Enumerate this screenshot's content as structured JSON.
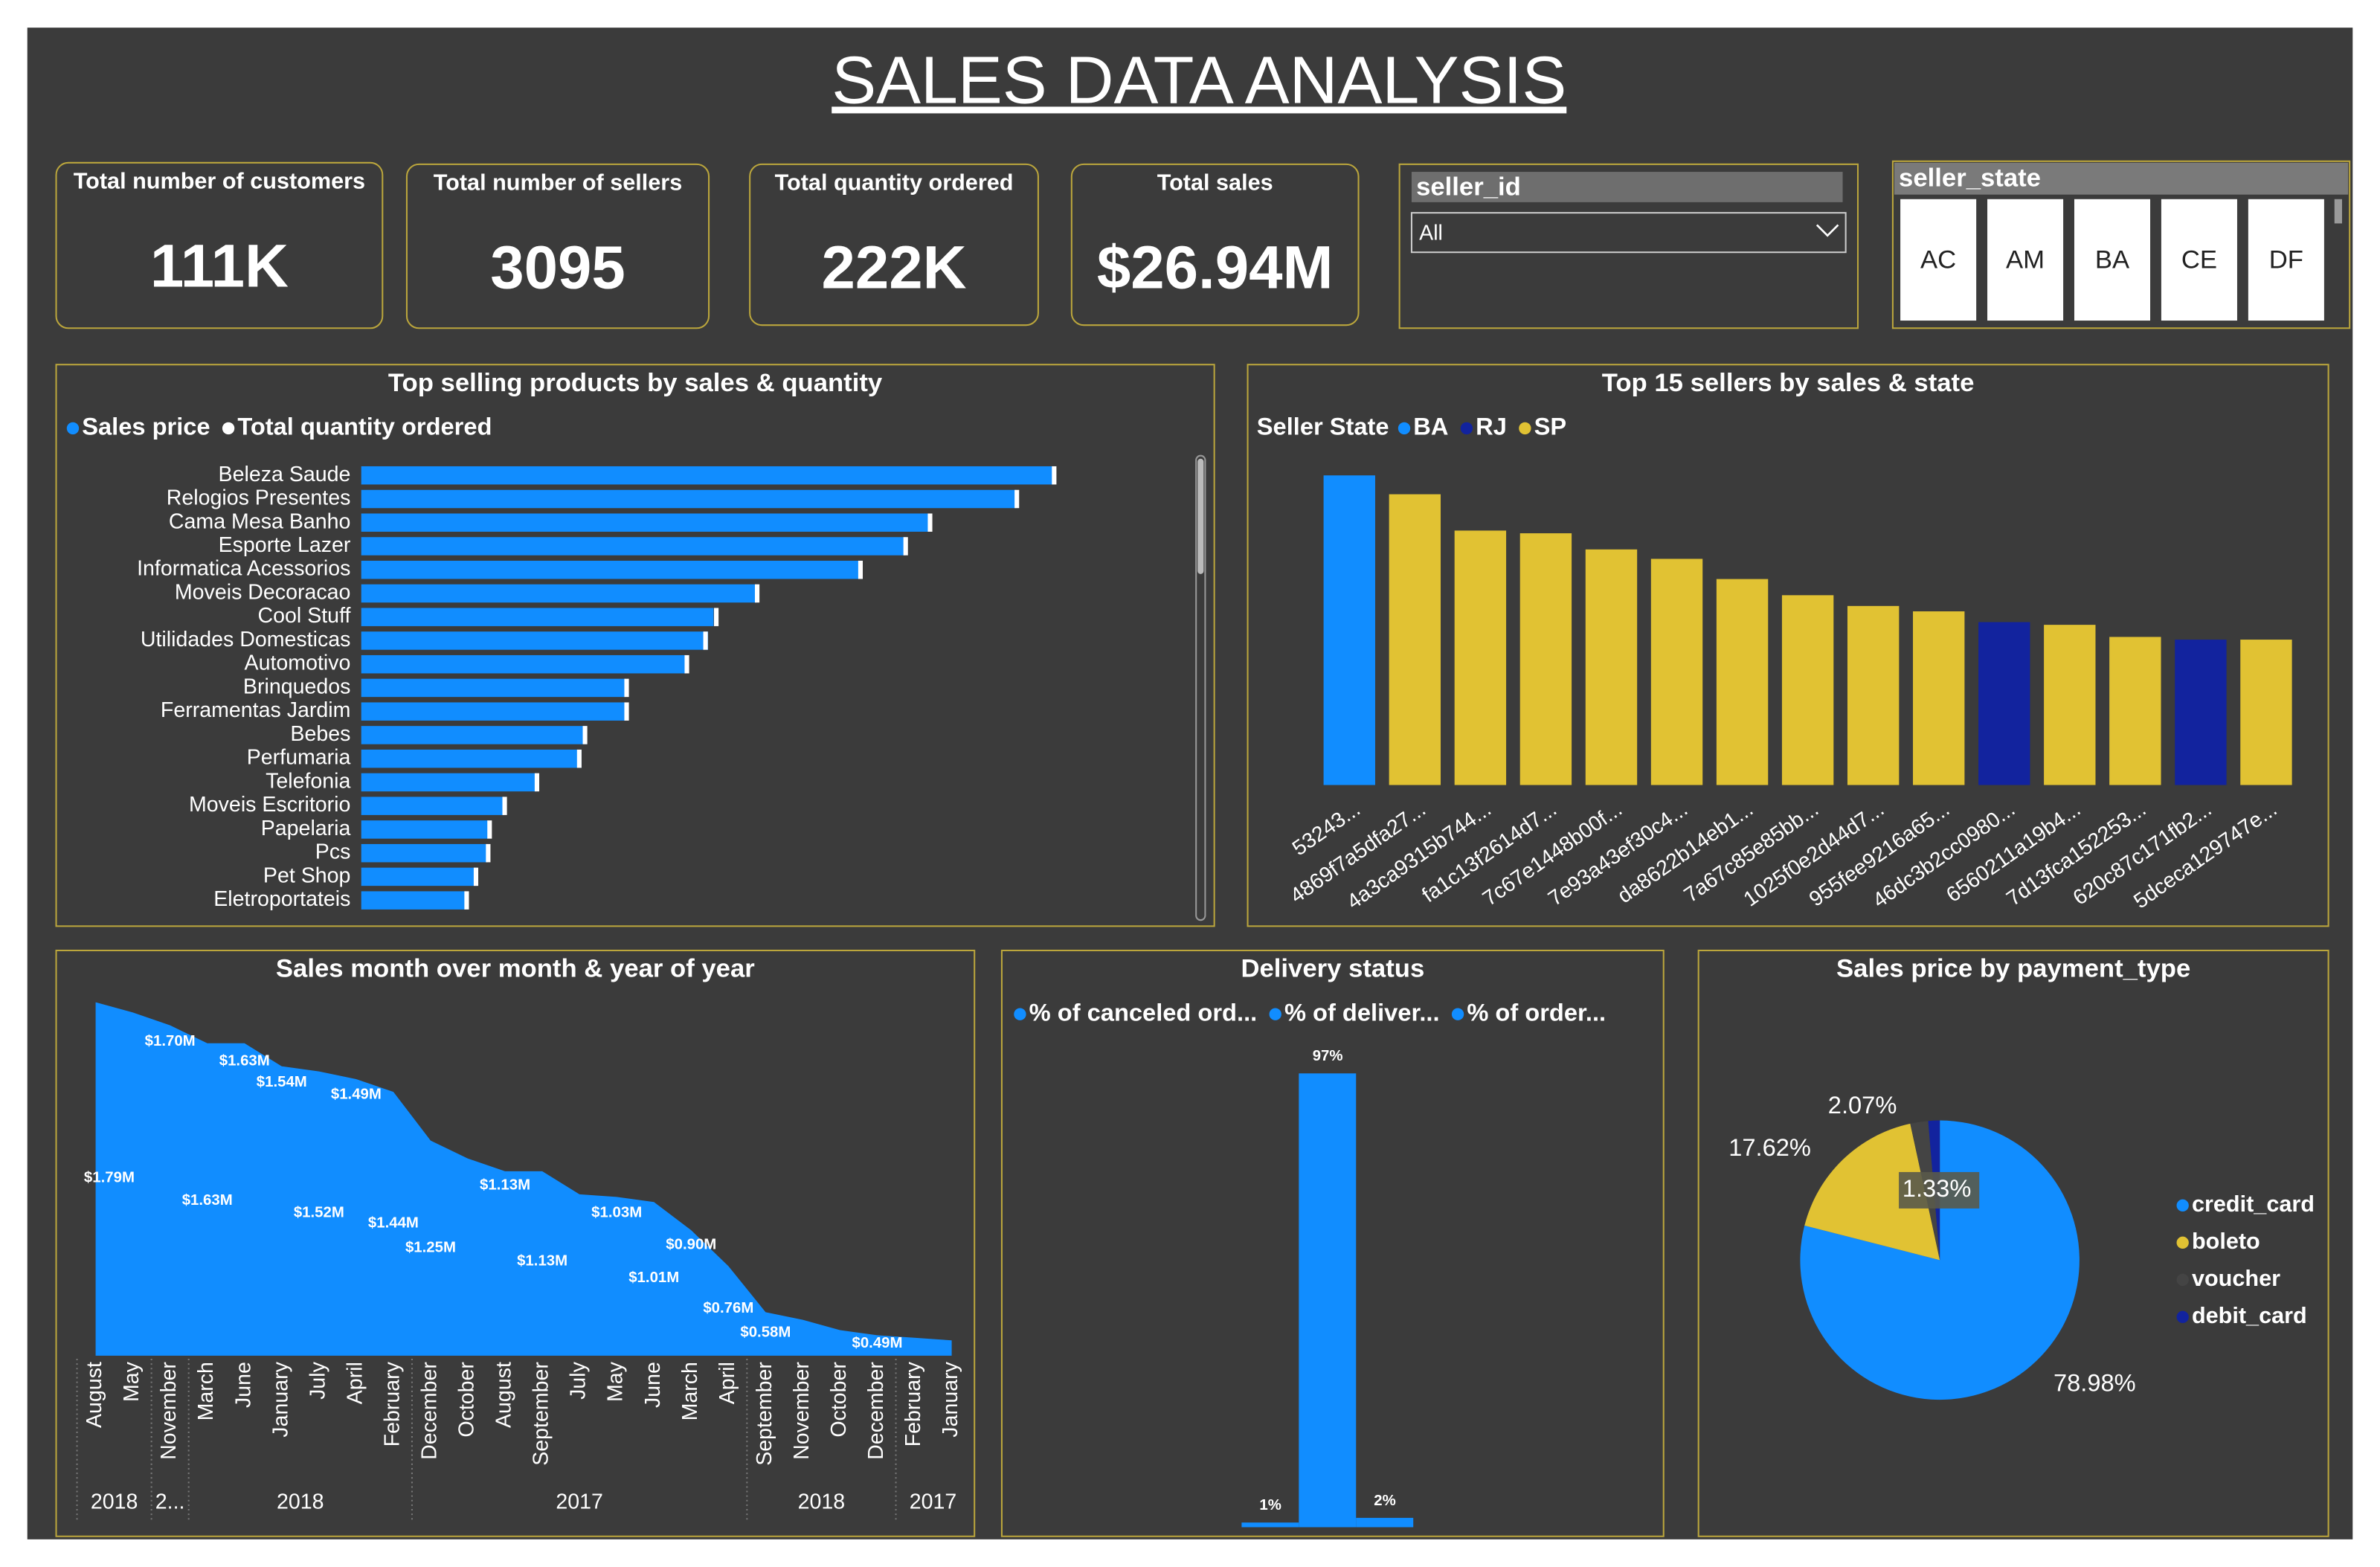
{
  "title": "SALES DATA ANALYSIS",
  "kpis": [
    {
      "label": "Total number of customers",
      "value": "111K"
    },
    {
      "label": "Total number of sellers",
      "value": "3095"
    },
    {
      "label": "Total quantity ordered",
      "value": "222K"
    },
    {
      "label": "Total sales",
      "value": "$26.94M"
    }
  ],
  "slicers": {
    "seller_id": {
      "title": "seller_id",
      "selected": "All"
    },
    "seller_state": {
      "title": "seller_state",
      "options": [
        "AC",
        "AM",
        "BA",
        "CE",
        "DF"
      ]
    }
  },
  "chart_data": [
    {
      "type": "hbar",
      "title": "Top selling products by sales & quantity",
      "categories": [
        "Beleza Saude",
        "Relogios Presentes",
        "Cama Mesa Banho",
        "Esporte Lazer",
        "Informatica Acessorios",
        "Moveis Decoracao",
        "Cool Stuff",
        "Utilidades Domesticas",
        "Automotivo",
        "Brinquedos",
        "Ferramentas Jardim",
        "Bebes",
        "Perfumaria",
        "Telefonia",
        "Moveis Escritorio",
        "Papelaria",
        "Pcs",
        "Pet Shop",
        "Eletroportateis"
      ],
      "series": [
        {
          "name": "Sales price",
          "color": "#118dff",
          "values": [
            1.26,
            1.19,
            1.03,
            0.99,
            0.91,
            0.72,
            0.64,
            0.63,
            0.59,
            0.48,
            0.48,
            0.41,
            0.4,
            0.32,
            0.26,
            0.23,
            0.23,
            0.21,
            0.19
          ]
        },
        {
          "name": "Total quantity ordered",
          "color": "#ffffff",
          "values": [
            9670,
            9150,
            7940,
            7600,
            6970,
            5530,
            4960,
            4810,
            4550,
            3710,
            3710,
            3130,
            3050,
            2460,
            2010,
            1800,
            1780,
            1610,
            1480
          ]
        }
      ]
    },
    {
      "type": "bar",
      "title": "Top 15 sellers by sales & state",
      "legend_title": "Seller State",
      "categories": [
        "53243...",
        "4869f7a5dfa27...",
        "4a3ca9315b744...",
        "fa1c13f2614d7...",
        "7c67e1448b00f...",
        "7e93a43ef30c4...",
        "da8622b14eb1...",
        "7a67c85e85bb...",
        "1025f0e2d44d7...",
        "955fee9216a65...",
        "46dc3b2cc0980...",
        "6560211a19b4...",
        "7d13fca152253...",
        "620c87c171fb2...",
        "5dceca129747e..."
      ],
      "series": [
        {
          "name": "BA",
          "color": "#118dff",
          "values": [
            230000,
            null,
            null,
            null,
            null,
            null,
            null,
            null,
            null,
            null,
            null,
            null,
            null,
            null,
            null
          ]
        },
        {
          "name": "RJ",
          "color": "#12239e",
          "values": [
            null,
            null,
            null,
            null,
            null,
            null,
            null,
            null,
            null,
            null,
            121000,
            null,
            null,
            108000,
            null
          ]
        },
        {
          "name": "SP",
          "color": "#e1c233",
          "values": [
            null,
            216000,
            189000,
            187000,
            175000,
            168000,
            153000,
            141000,
            133000,
            129000,
            null,
            119000,
            110000,
            null,
            108000
          ]
        }
      ]
    },
    {
      "type": "area",
      "title": "Sales month over month & year of year",
      "color": "#118dff",
      "categories": [
        "August",
        "May",
        "November",
        "March",
        "June",
        "January",
        "July",
        "April",
        "February",
        "December",
        "October",
        "August",
        "September",
        "July",
        "May",
        "June",
        "March",
        "April",
        "September",
        "November",
        "October",
        "December",
        "February",
        "January"
      ],
      "year_groups": [
        {
          "label": "2018",
          "count": 2
        },
        {
          "label": "2...",
          "count": 1
        },
        {
          "label": "2018",
          "count": 6
        },
        {
          "label": "2017",
          "count": 9
        },
        {
          "label": "2018",
          "count": 4
        },
        {
          "label": "2017",
          "count": 2
        }
      ],
      "values": [
        1.79,
        1.75,
        1.7,
        1.63,
        1.63,
        1.54,
        1.52,
        1.49,
        1.44,
        1.25,
        1.18,
        1.13,
        1.13,
        1.04,
        1.03,
        1.01,
        0.9,
        0.76,
        0.58,
        0.55,
        0.51,
        0.49,
        0.48,
        0.47
      ],
      "value_labels": [
        "$1.79M",
        null,
        "$1.70M",
        "$1.63M",
        "$1.63M",
        "$1.54M",
        "$1.52M",
        "$1.49M",
        "$1.44M",
        "$1.25M",
        null,
        "$1.13M",
        "$1.13M",
        null,
        "$1.03M",
        "$1.01M",
        "$0.90M",
        "$0.76M",
        "$0.58M",
        null,
        null,
        "$0.49M",
        null,
        null
      ],
      "ylim": [
        0.41,
        1.85
      ]
    },
    {
      "type": "bar",
      "title": "Delivery status",
      "series": [
        {
          "name": "% of canceled ord...",
          "color": "#118dff",
          "values": [
            1
          ],
          "value_labels": [
            "1%"
          ]
        },
        {
          "name": "% of deliver...",
          "color": "#118dff",
          "values": [
            97
          ],
          "value_labels": [
            "97%"
          ]
        },
        {
          "name": "% of order...",
          "color": "#118dff",
          "values": [
            2
          ],
          "value_labels": [
            "2%"
          ]
        }
      ]
    },
    {
      "type": "pie",
      "title": "Sales price by payment_type",
      "categories": [
        "credit_card",
        "boleto",
        "voucher",
        "debit_card"
      ],
      "values": [
        78.98,
        17.62,
        2.07,
        1.33
      ],
      "value_labels": [
        "78.98%",
        "17.62%",
        "2.07%",
        "1.33%"
      ],
      "colors": [
        "#118dff",
        "#e1c233",
        "#444444",
        "#12239e"
      ]
    }
  ]
}
